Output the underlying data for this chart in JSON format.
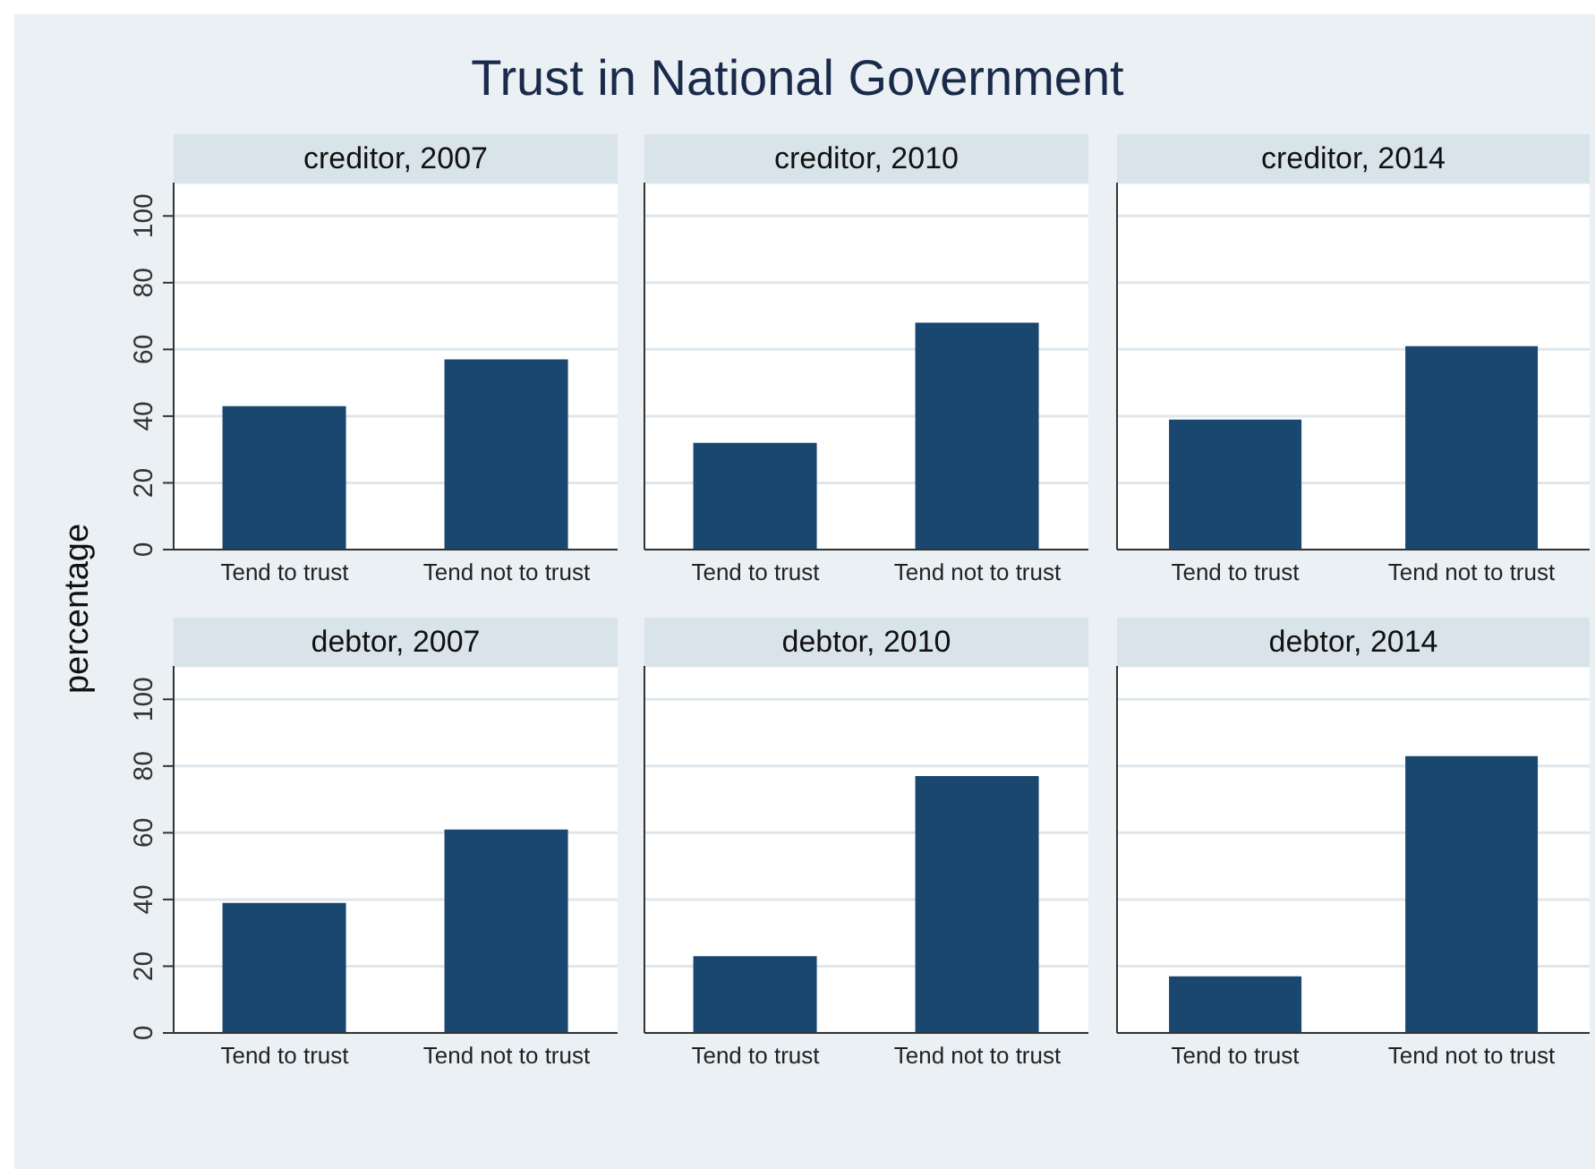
{
  "chart_data": [
    {
      "type": "bar",
      "title": "Trust in National Government",
      "subtitle": "creditor, 2007",
      "ylabel": "percentage",
      "categories": [
        "Tend to trust",
        "Tend not to trust"
      ],
      "values": [
        43,
        57
      ],
      "color": "#1a476f",
      "ylim": [
        0,
        110
      ],
      "yticks": [
        0,
        20,
        40,
        60,
        80,
        100
      ],
      "grid": "y"
    },
    {
      "type": "bar",
      "subtitle": "creditor, 2010",
      "categories": [
        "Tend to trust",
        "Tend not to trust"
      ],
      "values": [
        32,
        68
      ],
      "color": "#1a476f",
      "ylim": [
        0,
        110
      ],
      "yticks": [
        0,
        20,
        40,
        60,
        80,
        100
      ],
      "grid": "y",
      "tick_labels": "x"
    },
    {
      "type": "bar",
      "subtitle": "creditor, 2014",
      "categories": [
        "Tend to trust",
        "Tend not to trust"
      ],
      "values": [
        39,
        61
      ],
      "color": "#1a476f",
      "ylim": [
        0,
        110
      ],
      "yticks": [
        0,
        20,
        40,
        60,
        80,
        100
      ],
      "grid": "y",
      "tick_labels": "x"
    },
    {
      "type": "bar",
      "subtitle": "debtor, 2007",
      "categories": [
        "Tend to trust",
        "Tend not to trust"
      ],
      "values": [
        39,
        61
      ],
      "color": "#1a476f",
      "ylim": [
        0,
        110
      ],
      "yticks": [
        0,
        20,
        40,
        60,
        80,
        100
      ],
      "grid": "y"
    },
    {
      "type": "bar",
      "subtitle": "debtor, 2010",
      "categories": [
        "Tend to trust",
        "Tend not to trust"
      ],
      "values": [
        23,
        77
      ],
      "color": "#1a476f",
      "ylim": [
        0,
        110
      ],
      "yticks": [
        0,
        20,
        40,
        60,
        80,
        100
      ],
      "grid": "y",
      "tick_labels": "x"
    },
    {
      "type": "bar",
      "subtitle": "debtor, 2014",
      "categories": [
        "Tend to trust",
        "Tend not to trust"
      ],
      "values": [
        17,
        83
      ],
      "color": "#1a476f",
      "ylim": [
        0,
        110
      ],
      "yticks": [
        0,
        20,
        40,
        60,
        80,
        100
      ],
      "grid": "y",
      "tick_labels": "x"
    }
  ]
}
